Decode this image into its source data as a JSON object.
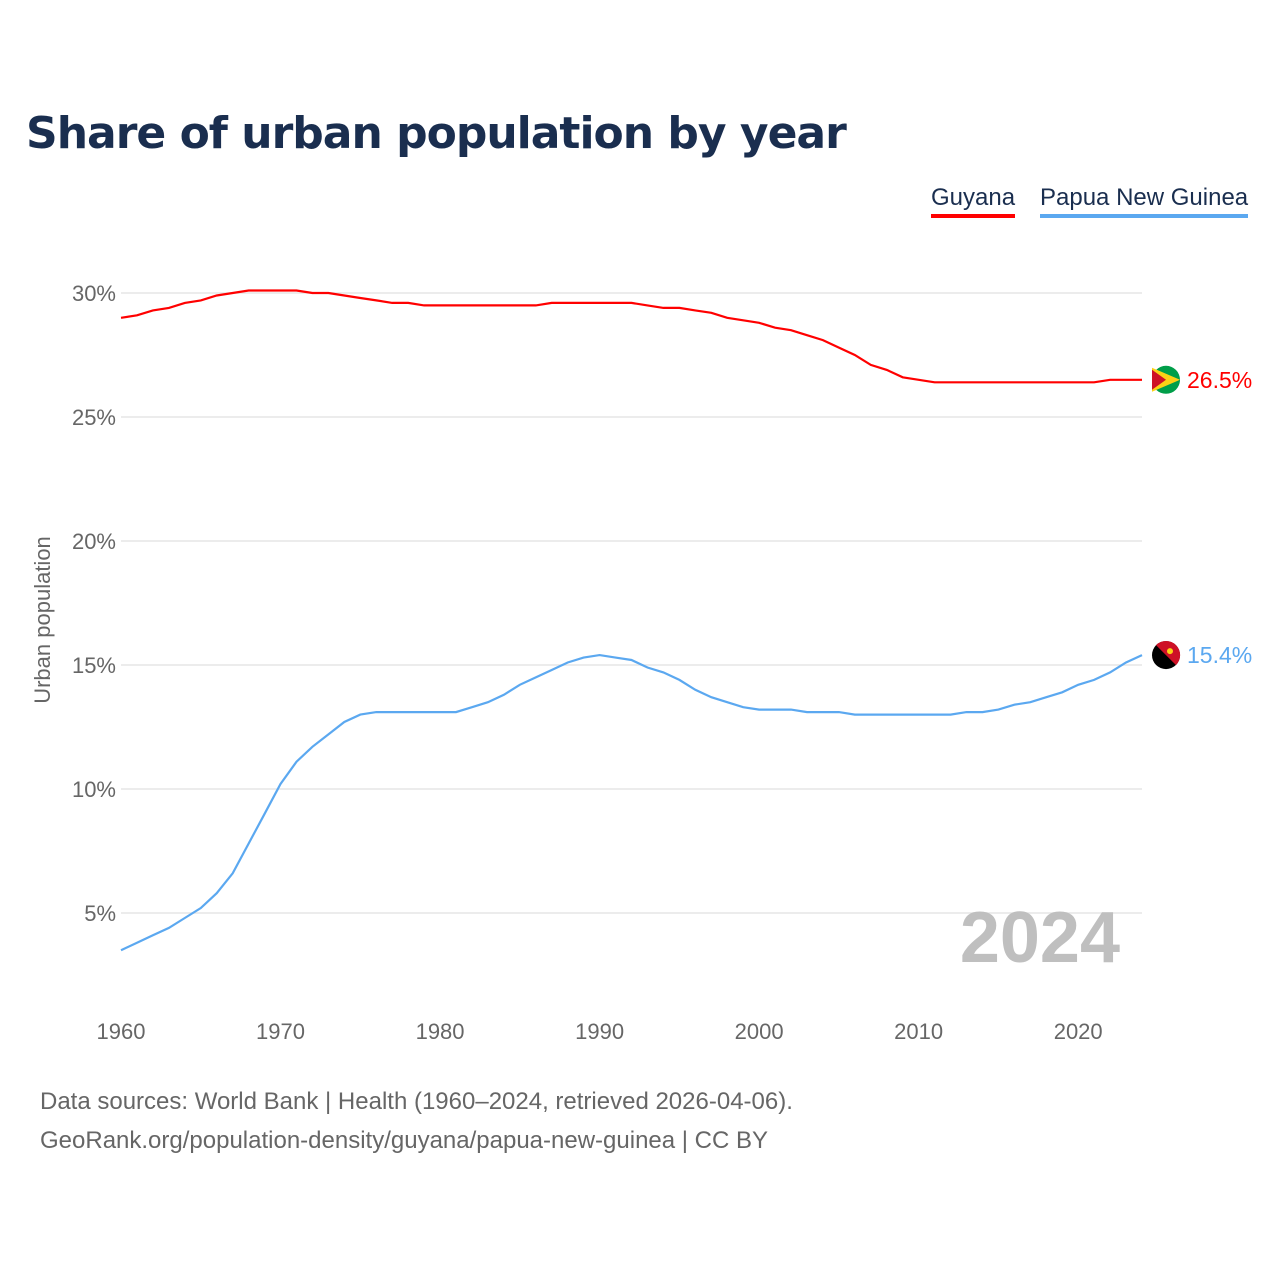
{
  "title": "Share of urban population by year",
  "legend": [
    {
      "name": "Guyana",
      "color": "#ff0000"
    },
    {
      "name": "Papua New Guinea",
      "color": "#5ba8f0"
    }
  ],
  "footer": {
    "line1": "Data sources: World Bank | Health (1960–2024, retrieved 2026-04-06).",
    "line2": "GeoRank.org/population-density/guyana/papua-new-guinea | CC BY"
  },
  "chart_data": {
    "type": "line",
    "title": "Share of urban population by year",
    "xlabel": "",
    "ylabel": "Urban population",
    "xlim": [
      1960,
      2024
    ],
    "ylim": [
      0,
      32
    ],
    "xticks": [
      1960,
      1970,
      1980,
      1990,
      2000,
      2010,
      2020
    ],
    "yticks": [
      5,
      10,
      15,
      20,
      25,
      30
    ],
    "ytick_labels": [
      "5%",
      "10%",
      "15%",
      "20%",
      "25%",
      "30%"
    ],
    "year_label": "2024",
    "x": [
      1960,
      1961,
      1962,
      1963,
      1964,
      1965,
      1966,
      1967,
      1968,
      1969,
      1970,
      1971,
      1972,
      1973,
      1974,
      1975,
      1976,
      1977,
      1978,
      1979,
      1980,
      1981,
      1982,
      1983,
      1984,
      1985,
      1986,
      1987,
      1988,
      1989,
      1990,
      1991,
      1992,
      1993,
      1994,
      1995,
      1996,
      1997,
      1998,
      1999,
      2000,
      2001,
      2002,
      2003,
      2004,
      2005,
      2006,
      2007,
      2008,
      2009,
      2010,
      2011,
      2012,
      2013,
      2014,
      2015,
      2016,
      2017,
      2018,
      2019,
      2020,
      2021,
      2022,
      2023,
      2024
    ],
    "series": [
      {
        "name": "Guyana",
        "color": "#ff0000",
        "end_label": "26.5%",
        "values": [
          29.0,
          29.1,
          29.3,
          29.4,
          29.6,
          29.7,
          29.9,
          30.0,
          30.1,
          30.1,
          30.1,
          30.1,
          30.0,
          30.0,
          29.9,
          29.8,
          29.7,
          29.6,
          29.6,
          29.5,
          29.5,
          29.5,
          29.5,
          29.5,
          29.5,
          29.5,
          29.5,
          29.6,
          29.6,
          29.6,
          29.6,
          29.6,
          29.6,
          29.5,
          29.4,
          29.4,
          29.3,
          29.2,
          29.0,
          28.9,
          28.8,
          28.6,
          28.5,
          28.3,
          28.1,
          27.8,
          27.5,
          27.1,
          26.9,
          26.6,
          26.5,
          26.4,
          26.4,
          26.4,
          26.4,
          26.4,
          26.4,
          26.4,
          26.4,
          26.4,
          26.4,
          26.4,
          26.5,
          26.5,
          26.5
        ]
      },
      {
        "name": "Papua New Guinea",
        "color": "#5ba8f0",
        "end_label": "15.4%",
        "values": [
          3.5,
          3.8,
          4.1,
          4.4,
          4.8,
          5.2,
          5.8,
          6.6,
          7.8,
          9.0,
          10.2,
          11.1,
          11.7,
          12.2,
          12.7,
          13.0,
          13.1,
          13.1,
          13.1,
          13.1,
          13.1,
          13.1,
          13.3,
          13.5,
          13.8,
          14.2,
          14.5,
          14.8,
          15.1,
          15.3,
          15.4,
          15.3,
          15.2,
          14.9,
          14.7,
          14.4,
          14.0,
          13.7,
          13.5,
          13.3,
          13.2,
          13.2,
          13.2,
          13.1,
          13.1,
          13.1,
          13.0,
          13.0,
          13.0,
          13.0,
          13.0,
          13.0,
          13.0,
          13.1,
          13.1,
          13.2,
          13.4,
          13.5,
          13.7,
          13.9,
          14.2,
          14.4,
          14.7,
          15.1,
          15.4
        ]
      }
    ]
  }
}
